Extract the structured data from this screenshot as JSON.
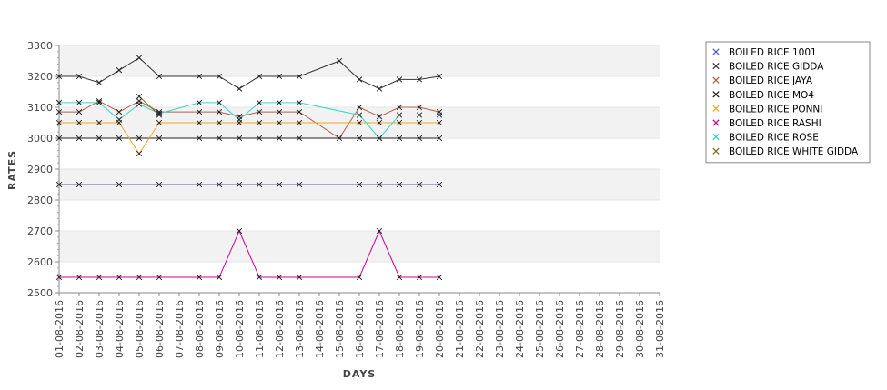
{
  "chart_data": {
    "type": "line",
    "title": "",
    "xlabel": "DAYS",
    "ylabel": "RATES",
    "ylim": [
      2500,
      3300
    ],
    "yticks": [
      2500,
      2600,
      2700,
      2800,
      2900,
      3000,
      3100,
      3200,
      3300
    ],
    "grid": "alternating horizontal bands",
    "legend_position": "right",
    "categories": [
      "01-08-2016",
      "02-08-2016",
      "03-08-2016",
      "04-08-2016",
      "05-08-2016",
      "06-08-2016",
      "07-08-2016",
      "08-08-2016",
      "09-08-2016",
      "10-08-2016",
      "11-08-2016",
      "12-08-2016",
      "13-08-2016",
      "14-08-2016",
      "15-08-2016",
      "16-08-2016",
      "17-08-2016",
      "18-08-2016",
      "19-08-2016",
      "20-08-2016",
      "21-08-2016",
      "22-08-2016",
      "23-08-2016",
      "24-08-2016",
      "25-08-2016",
      "26-08-2016",
      "27-08-2016",
      "28-08-2016",
      "29-08-2016",
      "30-08-2016",
      "31-08-2016"
    ],
    "series": [
      {
        "name": "BOILED RICE 1001",
        "color": "#5a5acc",
        "points": [
          [
            "01-08-2016",
            2850
          ],
          [
            "02-08-2016",
            2850
          ],
          [
            "04-08-2016",
            2850
          ],
          [
            "06-08-2016",
            2850
          ],
          [
            "08-08-2016",
            2850
          ],
          [
            "09-08-2016",
            2850
          ],
          [
            "10-08-2016",
            2850
          ],
          [
            "11-08-2016",
            2850
          ],
          [
            "12-08-2016",
            2850
          ],
          [
            "13-08-2016",
            2850
          ],
          [
            "16-08-2016",
            2850
          ],
          [
            "17-08-2016",
            2850
          ],
          [
            "18-08-2016",
            2850
          ],
          [
            "19-08-2016",
            2850
          ],
          [
            "20-08-2016",
            2850
          ]
        ]
      },
      {
        "name": "BOILED RICE GIDDA",
        "color": "#333333",
        "points": [
          [
            "01-08-2016",
            3200
          ],
          [
            "02-08-2016",
            3200
          ],
          [
            "03-08-2016",
            3180
          ],
          [
            "04-08-2016",
            3220
          ],
          [
            "05-08-2016",
            3260
          ],
          [
            "06-08-2016",
            3200
          ],
          [
            "08-08-2016",
            3200
          ],
          [
            "09-08-2016",
            3200
          ],
          [
            "10-08-2016",
            3160
          ],
          [
            "11-08-2016",
            3200
          ],
          [
            "12-08-2016",
            3200
          ],
          [
            "13-08-2016",
            3200
          ],
          [
            "15-08-2016",
            3250
          ],
          [
            "16-08-2016",
            3190
          ],
          [
            "17-08-2016",
            3160
          ],
          [
            "18-08-2016",
            3190
          ],
          [
            "19-08-2016",
            3190
          ],
          [
            "20-08-2016",
            3200
          ]
        ]
      },
      {
        "name": "BOILED RICE JAYA",
        "color": "#b06050",
        "points": [
          [
            "01-08-2016",
            3085
          ],
          [
            "02-08-2016",
            3085
          ],
          [
            "03-08-2016",
            3120
          ],
          [
            "04-08-2016",
            3085
          ],
          [
            "05-08-2016",
            3120
          ],
          [
            "06-08-2016",
            3085
          ],
          [
            "08-08-2016",
            3085
          ],
          [
            "09-08-2016",
            3085
          ],
          [
            "10-08-2016",
            3070
          ],
          [
            "11-08-2016",
            3085
          ],
          [
            "12-08-2016",
            3085
          ],
          [
            "13-08-2016",
            3085
          ],
          [
            "15-08-2016",
            3000
          ],
          [
            "16-08-2016",
            3100
          ],
          [
            "17-08-2016",
            3070
          ],
          [
            "18-08-2016",
            3100
          ],
          [
            "19-08-2016",
            3100
          ],
          [
            "20-08-2016",
            3085
          ]
        ]
      },
      {
        "name": "BOILED RICE MO4",
        "color": "#202020",
        "points": [
          [
            "01-08-2016",
            3000
          ],
          [
            "02-08-2016",
            3000
          ],
          [
            "03-08-2016",
            3000
          ],
          [
            "04-08-2016",
            3000
          ],
          [
            "05-08-2016",
            3000
          ],
          [
            "06-08-2016",
            3000
          ],
          [
            "08-08-2016",
            3000
          ],
          [
            "09-08-2016",
            3000
          ],
          [
            "10-08-2016",
            3000
          ],
          [
            "11-08-2016",
            3000
          ],
          [
            "12-08-2016",
            3000
          ],
          [
            "13-08-2016",
            3000
          ],
          [
            "16-08-2016",
            3000
          ],
          [
            "17-08-2016",
            3000
          ],
          [
            "18-08-2016",
            3000
          ],
          [
            "19-08-2016",
            3000
          ],
          [
            "20-08-2016",
            3000
          ]
        ]
      },
      {
        "name": "BOILED RICE PONNI",
        "color": "#f5a623",
        "points": [
          [
            "01-08-2016",
            3050
          ],
          [
            "02-08-2016",
            3050
          ],
          [
            "03-08-2016",
            3050
          ],
          [
            "04-08-2016",
            3050
          ],
          [
            "05-08-2016",
            2950
          ],
          [
            "06-08-2016",
            3050
          ],
          [
            "08-08-2016",
            3050
          ],
          [
            "09-08-2016",
            3050
          ],
          [
            "10-08-2016",
            3050
          ],
          [
            "11-08-2016",
            3050
          ],
          [
            "12-08-2016",
            3050
          ],
          [
            "13-08-2016",
            3050
          ],
          [
            "16-08-2016",
            3050
          ],
          [
            "17-08-2016",
            3050
          ],
          [
            "18-08-2016",
            3050
          ],
          [
            "19-08-2016",
            3050
          ],
          [
            "20-08-2016",
            3050
          ]
        ]
      },
      {
        "name": "BOILED RICE RASHI",
        "color": "#cc0099",
        "points": [
          [
            "01-08-2016",
            2550
          ],
          [
            "02-08-2016",
            2550
          ],
          [
            "03-08-2016",
            2550
          ],
          [
            "04-08-2016",
            2550
          ],
          [
            "05-08-2016",
            2550
          ],
          [
            "06-08-2016",
            2550
          ],
          [
            "08-08-2016",
            2550
          ],
          [
            "09-08-2016",
            2550
          ],
          [
            "10-08-2016",
            2700
          ],
          [
            "11-08-2016",
            2550
          ],
          [
            "12-08-2016",
            2550
          ],
          [
            "13-08-2016",
            2550
          ],
          [
            "16-08-2016",
            2550
          ],
          [
            "17-08-2016",
            2700
          ],
          [
            "18-08-2016",
            2550
          ],
          [
            "19-08-2016",
            2550
          ],
          [
            "20-08-2016",
            2550
          ]
        ]
      },
      {
        "name": "BOILED RICE ROSE",
        "color": "#30d8c8",
        "points": [
          [
            "01-08-2016",
            3115
          ],
          [
            "02-08-2016",
            3115
          ],
          [
            "03-08-2016",
            3115
          ],
          [
            "04-08-2016",
            3060
          ],
          [
            "05-08-2016",
            3110
          ],
          [
            "06-08-2016",
            3080
          ],
          [
            "08-08-2016",
            3115
          ],
          [
            "09-08-2016",
            3115
          ],
          [
            "10-08-2016",
            3060
          ],
          [
            "11-08-2016",
            3115
          ],
          [
            "12-08-2016",
            3115
          ],
          [
            "13-08-2016",
            3115
          ],
          [
            "16-08-2016",
            3075
          ],
          [
            "17-08-2016",
            3000
          ],
          [
            "18-08-2016",
            3075
          ],
          [
            "19-08-2016",
            3075
          ],
          [
            "20-08-2016",
            3075
          ]
        ]
      },
      {
        "name": "BOILED RICE WHITE GIDDA",
        "color": "#8a6a20",
        "points": [
          [
            "05-08-2016",
            3135
          ],
          [
            "06-08-2016",
            3075
          ]
        ]
      }
    ]
  }
}
